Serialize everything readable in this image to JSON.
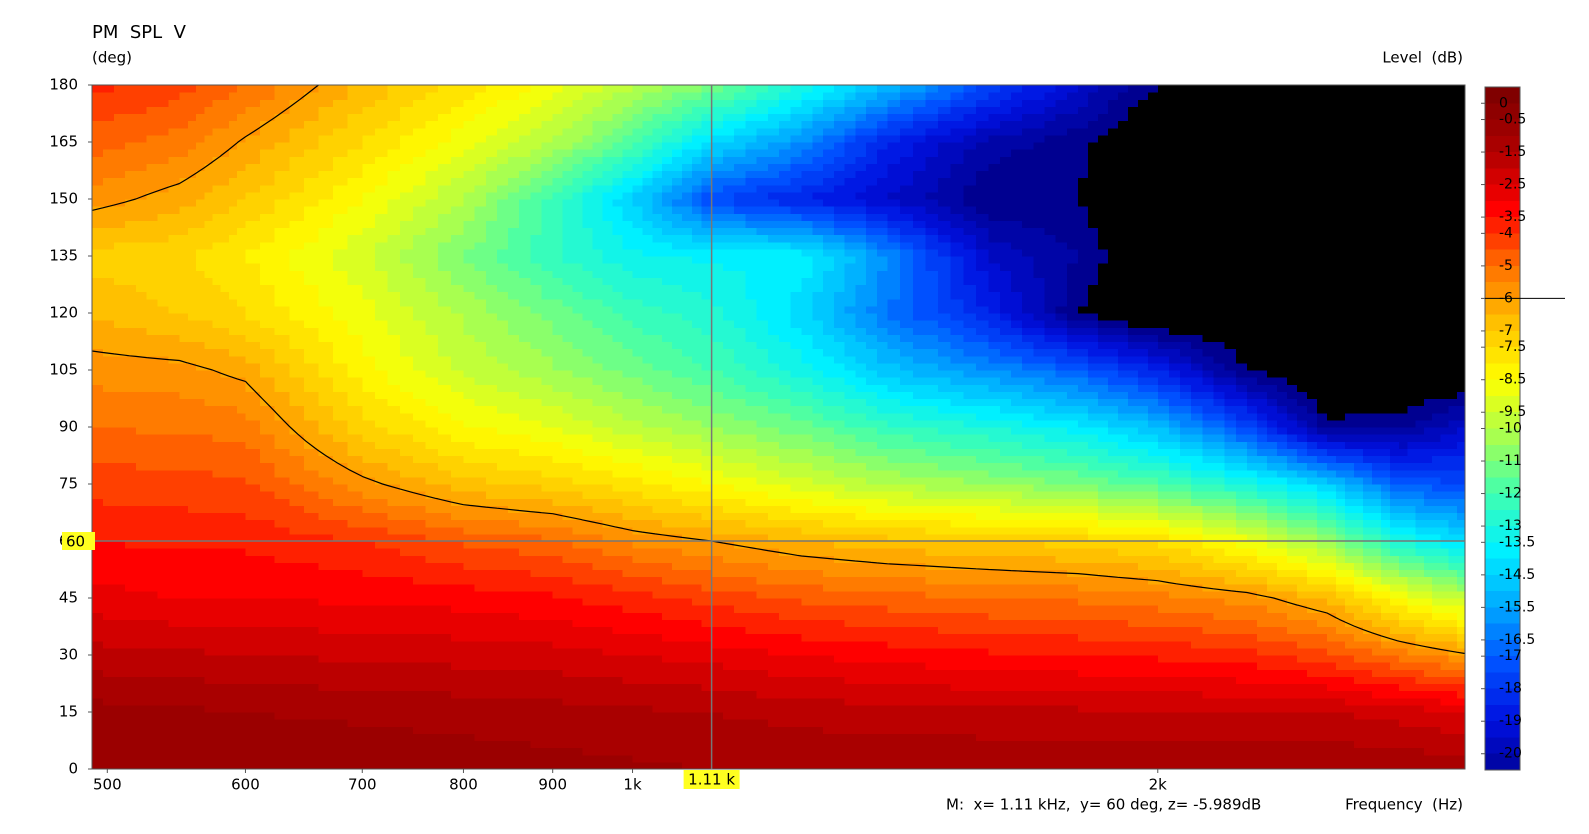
{
  "chart_data": {
    "type": "contour",
    "title": "PM  SPL  V",
    "y_label": "(deg)",
    "z_label": "Level  (dB)",
    "x_label": "Frequency  (Hz)",
    "x_log": true,
    "x": [
      490,
      550,
      600,
      700,
      800,
      900,
      1000,
      1110,
      1250,
      1400,
      1600,
      1800,
      2000,
      2250,
      2500,
      2750,
      3000
    ],
    "y": [
      0,
      15,
      30,
      45,
      60,
      75,
      90,
      105,
      120,
      135,
      150,
      165,
      180
    ],
    "z": [
      [
        -0.5,
        -0.5,
        -0.6,
        -0.6,
        -0.7,
        -0.8,
        -0.9,
        -1,
        -1,
        -1,
        -1,
        -1,
        -1,
        -1,
        -1,
        -1.1,
        -1.2
      ],
      [
        -0.8,
        -0.9,
        -1,
        -1.1,
        -1.2,
        -1.3,
        -1.4,
        -1.5,
        -1.7,
        -1.8,
        -1.9,
        -1.9,
        -1.9,
        -2,
        -2,
        -2.2,
        -2.5
      ],
      [
        -1.8,
        -1.9,
        -2,
        -2.1,
        -2.2,
        -2.3,
        -2.5,
        -2.7,
        -3,
        -3.2,
        -3.4,
        -3.5,
        -3.6,
        -3.8,
        -4.3,
        -5.2,
        -5.9
      ],
      [
        -2.8,
        -3,
        -3,
        -3.1,
        -3.2,
        -3.4,
        -3.8,
        -4.2,
        -4.6,
        -4.8,
        -5,
        -5.1,
        -5.3,
        -5.7,
        -6.6,
        -8.5,
        -9.8
      ],
      [
        -3.5,
        -3.6,
        -3.6,
        -4,
        -4.6,
        -4.9,
        -5.6,
        -6,
        -6.5,
        -6.8,
        -7,
        -7.2,
        -7.6,
        -8.8,
        -10.5,
        -13,
        -14.2
      ],
      [
        -4.2,
        -4.3,
        -4.4,
        -5.8,
        -6.8,
        -7.2,
        -7.8,
        -8.5,
        -9.3,
        -10,
        -10.5,
        -11,
        -11.8,
        -13,
        -14.5,
        -17,
        -17.5
      ],
      [
        -5,
        -5.1,
        -5.2,
        -7.3,
        -8.4,
        -9,
        -9.8,
        -10.5,
        -11.3,
        -12.3,
        -13,
        -13.8,
        -15,
        -17.5,
        -20.8,
        -20.7,
        -19.5
      ],
      [
        -5.7,
        -5.8,
        -6.2,
        -8.3,
        -9.6,
        -10.4,
        -11.2,
        -12,
        -13.2,
        -14.8,
        -16,
        -17,
        -18.5,
        -21,
        -22,
        -22,
        -22
      ],
      [
        -6.6,
        -7,
        -7.5,
        -8.8,
        -10.1,
        -11.2,
        -12.2,
        -12.8,
        -14.3,
        -16.5,
        -18.5,
        -21,
        -22,
        -22,
        -22,
        -22,
        -22
      ],
      [
        -7.2,
        -7.4,
        -8,
        -9.4,
        -11,
        -12.4,
        -13.4,
        -13.6,
        -13.6,
        -16,
        -19.5,
        -20.5,
        -22,
        -22,
        -22,
        -22,
        -22
      ],
      [
        -5.7,
        -6.3,
        -7,
        -8.5,
        -10,
        -12.2,
        -14.5,
        -17.5,
        -18.5,
        -19.5,
        -21,
        -21,
        -22,
        -22,
        -22,
        -22,
        -22
      ],
      [
        -4.8,
        -5.2,
        -6.1,
        -7.5,
        -8.8,
        -10,
        -11.8,
        -14.2,
        -16,
        -18.5,
        -20.2,
        -20.8,
        -22,
        -22,
        -22,
        -22,
        -22
      ],
      [
        -3.8,
        -4.3,
        -5,
        -6.6,
        -7.7,
        -8.7,
        -9.9,
        -11,
        -13,
        -15,
        -17.5,
        -19.5,
        -21,
        -22,
        -22,
        -22,
        -22
      ]
    ],
    "xlim": [
      490,
      3000
    ],
    "ylim": [
      0,
      180
    ],
    "xticks": [
      500,
      600,
      700,
      800,
      900,
      {
        "value": 1000,
        "label": "1k"
      },
      {
        "value": 2000,
        "label": "2k"
      }
    ],
    "yticks": [
      0,
      15,
      30,
      45,
      60,
      75,
      90,
      105,
      120,
      135,
      150,
      165,
      180
    ],
    "zlim": [
      -20.5,
      0.5
    ],
    "zticks": [
      0,
      -0.5,
      -1.5,
      -2.5,
      -3.5,
      -4,
      -5,
      -6,
      -7,
      -7.5,
      -8.5,
      -9.5,
      -10,
      -11,
      -12,
      -13,
      -13.5,
      -14.5,
      -15.5,
      -16.5,
      -17,
      -18,
      -19,
      -20
    ],
    "colors": [
      "#800000",
      "#b00000",
      "#ff0000",
      "#ff7000",
      "#ffc000",
      "#ffff00",
      "#a8ff50",
      "#40ffb0",
      "#00f0ff",
      "#00a8ff",
      "#0050ff",
      "#0010e0",
      "#000090"
    ],
    "under_color": "#000000",
    "contour_level": -6,
    "marker": {
      "x": {
        "value": 1110,
        "label": "1.11 k"
      },
      "y": 60,
      "readout": "M:  x= 1.11 kHz,  y= 60 deg, z= -5.989dB"
    }
  }
}
